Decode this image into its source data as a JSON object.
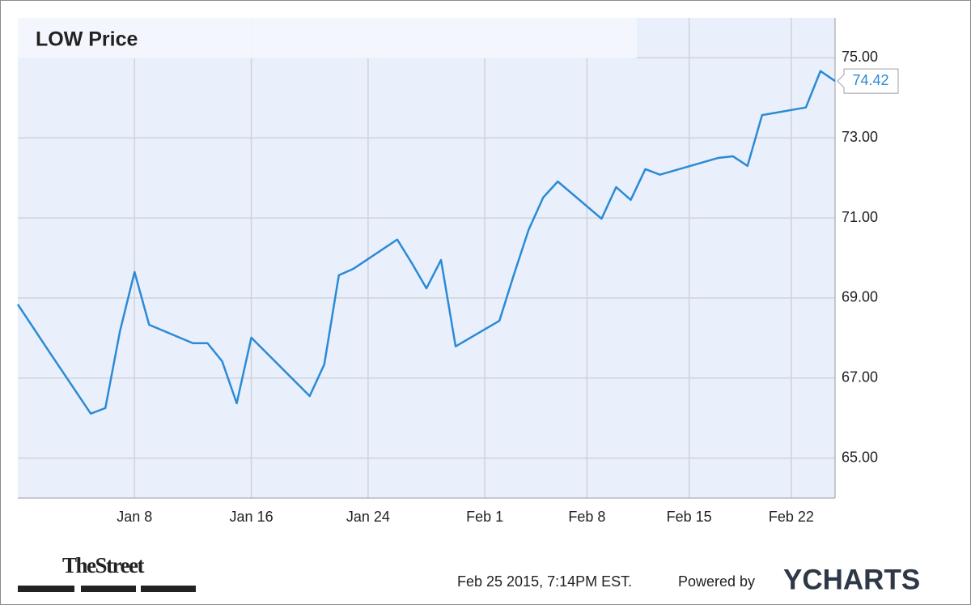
{
  "chart_data": {
    "type": "line",
    "title": "LOW Price",
    "x": [
      "Dec 31",
      "Jan 2",
      "Jan 5",
      "Jan 6",
      "Jan 7",
      "Jan 8",
      "Jan 9",
      "Jan 12",
      "Jan 13",
      "Jan 14",
      "Jan 15",
      "Jan 16",
      "Jan 20",
      "Jan 21",
      "Jan 22",
      "Jan 23",
      "Jan 26",
      "Jan 27",
      "Jan 28",
      "Jan 29",
      "Jan 30",
      "Feb 2",
      "Feb 3",
      "Feb 4",
      "Feb 5",
      "Feb 6",
      "Feb 9",
      "Feb 10",
      "Feb 11",
      "Feb 12",
      "Feb 13",
      "Feb 17",
      "Feb 18",
      "Feb 19",
      "Feb 20",
      "Feb 23",
      "Feb 24",
      "Feb 25"
    ],
    "values": [
      68.84,
      67.74,
      66.11,
      66.25,
      68.17,
      69.65,
      68.33,
      67.87,
      67.87,
      67.42,
      66.37,
      68.01,
      66.55,
      67.34,
      69.57,
      69.73,
      70.46,
      69.87,
      69.24,
      69.95,
      67.79,
      68.43,
      69.59,
      70.7,
      71.51,
      71.91,
      70.98,
      71.77,
      71.45,
      72.22,
      72.08,
      72.5,
      72.54,
      72.3,
      73.57,
      73.76,
      74.67,
      74.42
    ],
    "color": "#2b8ad6",
    "xlim": [
      "Dec 31",
      "Feb 25"
    ],
    "xticks": [
      "Jan 8",
      "Jan 16",
      "Jan 24",
      "Feb 1",
      "Feb 8",
      "Feb 15",
      "Feb 22"
    ],
    "ylim": [
      64,
      76
    ],
    "yticks": [
      {
        "value": 65,
        "label": "65.00"
      },
      {
        "value": 67,
        "label": "67.00"
      },
      {
        "value": 69,
        "label": "69.00"
      },
      {
        "value": 71,
        "label": "71.00"
      },
      {
        "value": 73,
        "label": "73.00"
      },
      {
        "value": 75,
        "label": "75.00"
      }
    ],
    "grid": true
  },
  "footer": {
    "source": "TheStreet",
    "timestamp": "Feb 25 2015, 7:14PM EST.",
    "powered_by": "Powered by",
    "brand": "YCHARTS"
  }
}
